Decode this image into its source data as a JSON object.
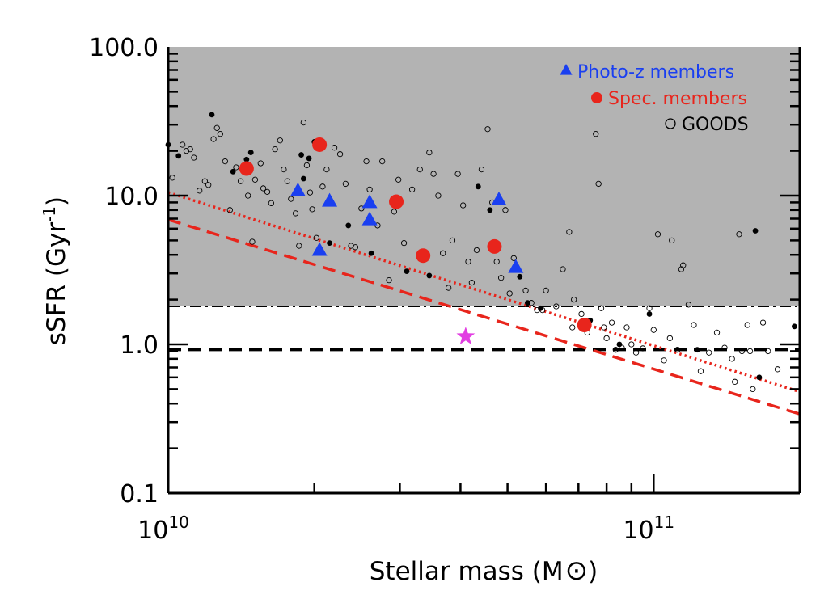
{
  "chart_data": {
    "type": "scatter",
    "title": "",
    "xlabel": "Stellar mass (M",
    "xlabel_suffix": ")",
    "ylabel": "sSFR (Gyr",
    "ylabel_sup": "-1",
    "ylabel_suffix": ")",
    "xscale": "log",
    "yscale": "log",
    "xlim": [
      10000000000.0,
      200000000000.0
    ],
    "ylim": [
      0.1,
      100
    ],
    "x_ticks": [
      {
        "value": 10000000000.0,
        "base": "10",
        "exp": "10"
      },
      {
        "value": 100000000000.0,
        "base": "10",
        "exp": "11"
      }
    ],
    "y_ticks": [
      {
        "value": 0.1,
        "label": "0.1"
      },
      {
        "value": 1.0,
        "label": "1.0"
      },
      {
        "value": 10.0,
        "label": "10.0"
      },
      {
        "value": 100.0,
        "label": "100.0"
      }
    ],
    "shaded_region": {
      "y_min": 1.8,
      "y_max": 100,
      "color": "#b3b3b3"
    },
    "hlines": [
      {
        "y": 1.8,
        "style": "dash-dot",
        "color": "#000000"
      },
      {
        "y": 0.92,
        "style": "dashed",
        "color": "#000000"
      }
    ],
    "lines": [
      {
        "name": "dotted relation",
        "style": "dotted",
        "color": "#e8251c",
        "points": [
          [
            10000000000.0,
            10.5
          ],
          [
            200000000000.0,
            0.48
          ]
        ]
      },
      {
        "name": "dashed relation",
        "style": "dashed",
        "color": "#e8251c",
        "points": [
          [
            10000000000.0,
            6.9
          ],
          [
            200000000000.0,
            0.34
          ]
        ]
      }
    ],
    "legend": {
      "position": "top-right",
      "entries": [
        {
          "label": "Photo-z members",
          "marker": "triangle",
          "color": "#1a3ff0"
        },
        {
          "label": "Spec. members",
          "marker": "filled-circle",
          "color": "#e8251c"
        },
        {
          "label": "GOODS",
          "marker": "open-circle",
          "color": "#000000"
        }
      ]
    },
    "series": [
      {
        "name": "Photo-z members",
        "marker": "triangle",
        "color": "#1a3ff0",
        "points": [
          [
            18500000000.0,
            10.8
          ],
          [
            21500000000.0,
            9.2
          ],
          [
            26000000000.0,
            9.0
          ],
          [
            26000000000.0,
            6.9
          ],
          [
            20500000000.0,
            4.3
          ],
          [
            48000000000.0,
            9.4
          ],
          [
            52000000000.0,
            3.3
          ]
        ]
      },
      {
        "name": "Spec. members",
        "marker": "filled-circle",
        "color": "#e8251c",
        "points": [
          [
            14500000000.0,
            15.2
          ],
          [
            20500000000.0,
            22.0
          ],
          [
            29500000000.0,
            9.1
          ],
          [
            33500000000.0,
            3.95
          ],
          [
            47000000000.0,
            4.55
          ],
          [
            72000000000.0,
            1.35
          ]
        ]
      },
      {
        "name": "GOODS filled",
        "marker": "filled-dot",
        "color": "#000000",
        "points": [
          [
            10000000000.0,
            22.0
          ],
          [
            10500000000.0,
            18.5
          ],
          [
            12300000000.0,
            35.0
          ],
          [
            13600000000.0,
            14.5
          ],
          [
            14500000000.0,
            17.5
          ],
          [
            14800000000.0,
            19.5
          ],
          [
            18800000000.0,
            18.8
          ],
          [
            19500000000.0,
            17.8
          ],
          [
            19000000000.0,
            13.0
          ],
          [
            20000000000.0,
            23.0
          ],
          [
            21500000000.0,
            4.8
          ],
          [
            23500000000.0,
            6.3
          ],
          [
            26200000000.0,
            4.1
          ],
          [
            31000000000.0,
            3.1
          ],
          [
            34500000000.0,
            2.9
          ],
          [
            43500000000.0,
            11.5
          ],
          [
            46000000000.0,
            8.0
          ],
          [
            53000000000.0,
            2.85
          ],
          [
            55000000000.0,
            1.9
          ],
          [
            58500000000.0,
            1.75
          ],
          [
            74000000000.0,
            1.45
          ],
          [
            85000000000.0,
            1.0
          ],
          [
            98000000000.0,
            1.6
          ],
          [
            123000000000.0,
            0.92
          ],
          [
            162000000000.0,
            5.8
          ],
          [
            165000000000.0,
            0.6
          ],
          [
            195000000000.0,
            1.32
          ]
        ]
      },
      {
        "name": "GOODS",
        "marker": "open-circle",
        "color": "#000000",
        "points": [
          [
            10200000000.0,
            13.2
          ],
          [
            10700000000.0,
            22.0
          ],
          [
            10900000000.0,
            20.0
          ],
          [
            11100000000.0,
            20.5
          ],
          [
            11300000000.0,
            18.0
          ],
          [
            11600000000.0,
            10.8
          ],
          [
            11900000000.0,
            12.5
          ],
          [
            12100000000.0,
            11.8
          ],
          [
            12400000000.0,
            24.0
          ],
          [
            12600000000.0,
            28.5
          ],
          [
            12800000000.0,
            26.0
          ],
          [
            13100000000.0,
            17.0
          ],
          [
            13400000000.0,
            8.0
          ],
          [
            13800000000.0,
            15.5
          ],
          [
            14100000000.0,
            12.5
          ],
          [
            14600000000.0,
            10.0
          ],
          [
            14900000000.0,
            4.9
          ],
          [
            15100000000.0,
            12.8
          ],
          [
            15500000000.0,
            16.5
          ],
          [
            15700000000.0,
            11.2
          ],
          [
            16000000000.0,
            10.6
          ],
          [
            16300000000.0,
            8.9
          ],
          [
            16600000000.0,
            20.5
          ],
          [
            17000000000.0,
            23.5
          ],
          [
            17300000000.0,
            15.0
          ],
          [
            17600000000.0,
            12.5
          ],
          [
            17900000000.0,
            9.5
          ],
          [
            18300000000.0,
            7.6
          ],
          [
            18600000000.0,
            4.6
          ],
          [
            19000000000.0,
            31.0
          ],
          [
            19300000000.0,
            16.0
          ],
          [
            19600000000.0,
            10.5
          ],
          [
            19800000000.0,
            8.1
          ],
          [
            20200000000.0,
            5.2
          ],
          [
            20800000000.0,
            11.5
          ],
          [
            21200000000.0,
            15.0
          ],
          [
            22000000000.0,
            21.0
          ],
          [
            22600000000.0,
            19.0
          ],
          [
            23200000000.0,
            12.0
          ],
          [
            23800000000.0,
            4.6
          ],
          [
            24300000000.0,
            4.5
          ],
          [
            25000000000.0,
            8.2
          ],
          [
            25600000000.0,
            17.0
          ],
          [
            26000000000.0,
            11.0
          ],
          [
            27000000000.0,
            6.3
          ],
          [
            27600000000.0,
            17.0
          ],
          [
            28500000000.0,
            2.7
          ],
          [
            29200000000.0,
            7.8
          ],
          [
            29800000000.0,
            12.8
          ],
          [
            30600000000.0,
            4.8
          ],
          [
            31800000000.0,
            11.0
          ],
          [
            33000000000.0,
            15.0
          ],
          [
            34500000000.0,
            19.5
          ],
          [
            35200000000.0,
            14.0
          ],
          [
            36000000000.0,
            10.0
          ],
          [
            36800000000.0,
            4.1
          ],
          [
            37800000000.0,
            2.4
          ],
          [
            38500000000.0,
            5.0
          ],
          [
            39500000000.0,
            14.0
          ],
          [
            40500000000.0,
            8.6
          ],
          [
            41500000000.0,
            3.6
          ],
          [
            42200000000.0,
            2.6
          ],
          [
            43200000000.0,
            4.3
          ],
          [
            44200000000.0,
            15.0
          ],
          [
            45500000000.0,
            28.0
          ],
          [
            46500000000.0,
            9.0
          ],
          [
            47500000000.0,
            3.6
          ],
          [
            48500000000.0,
            2.8
          ],
          [
            49500000000.0,
            8.0
          ],
          [
            50500000000.0,
            2.2
          ],
          [
            51500000000.0,
            3.8
          ],
          [
            54500000000.0,
            2.3
          ],
          [
            56000000000.0,
            1.9
          ],
          [
            57500000000.0,
            1.7
          ],
          [
            60000000000.0,
            2.3
          ],
          [
            63000000000.0,
            1.8
          ],
          [
            65000000000.0,
            3.2
          ],
          [
            67000000000.0,
            5.7
          ],
          [
            68500000000.0,
            2.0
          ],
          [
            71000000000.0,
            1.6
          ],
          [
            76000000000.0,
            26.0
          ],
          [
            77000000000.0,
            12.0
          ],
          [
            78000000000.0,
            1.75
          ],
          [
            79000000000.0,
            1.3
          ],
          [
            80000000000.0,
            1.1
          ],
          [
            82000000000.0,
            1.4
          ],
          [
            83500000000.0,
            0.92
          ],
          [
            86000000000.0,
            0.95
          ],
          [
            88000000000.0,
            1.3
          ],
          [
            90000000000.0,
            1.0
          ],
          [
            92000000000.0,
            0.88
          ],
          [
            95000000000.0,
            0.94
          ],
          [
            98000000000.0,
            1.75
          ],
          [
            100000000000.0,
            1.25
          ],
          [
            102000000000.0,
            5.5
          ],
          [
            105000000000.0,
            0.78
          ],
          [
            108000000000.0,
            1.1
          ],
          [
            112000000000.0,
            0.92
          ],
          [
            115000000000.0,
            3.4
          ],
          [
            118000000000.0,
            1.85
          ],
          [
            121000000000.0,
            1.35
          ],
          [
            125000000000.0,
            0.66
          ],
          [
            130000000000.0,
            0.88
          ],
          [
            135000000000.0,
            1.2
          ],
          [
            140000000000.0,
            0.95
          ],
          [
            145000000000.0,
            0.8
          ],
          [
            150000000000.0,
            5.5
          ],
          [
            156000000000.0,
            1.35
          ],
          [
            160000000000.0,
            0.5
          ],
          [
            168000000000.0,
            1.4
          ],
          [
            172000000000.0,
            0.9
          ],
          [
            180000000000.0,
            0.68
          ],
          [
            109000000000.0,
            5.0
          ],
          [
            68000000000.0,
            1.3
          ],
          [
            73000000000.0,
            1.2
          ],
          [
            114000000000.0,
            3.2
          ],
          [
            147000000000.0,
            0.56
          ],
          [
            152000000000.0,
            0.9
          ],
          [
            158000000000.0,
            0.9
          ],
          [
            59000000000.0,
            1.7
          ]
        ]
      },
      {
        "name": "Star",
        "marker": "star",
        "color": "#e23fe2",
        "points": [
          [
            41000000000.0,
            1.13
          ]
        ]
      }
    ]
  }
}
